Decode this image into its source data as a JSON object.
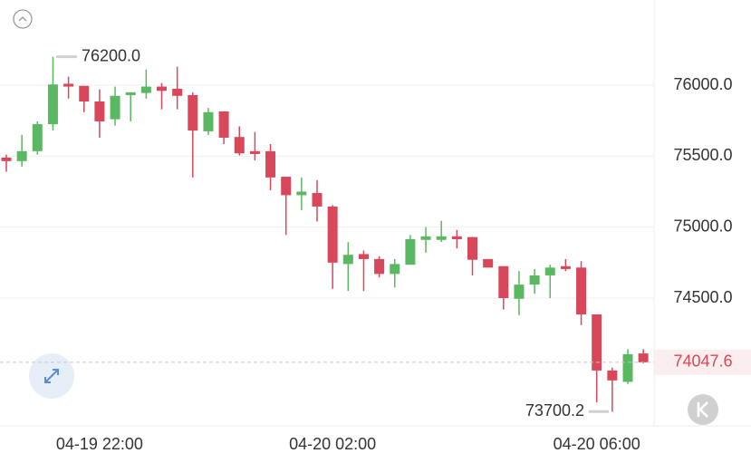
{
  "chart_data": {
    "type": "candlestick",
    "categories": [
      null,
      null,
      null,
      null,
      null,
      null,
      "04-19 22:00",
      null,
      null,
      null,
      null,
      null,
      null,
      null,
      null,
      null,
      null,
      null,
      null,
      null,
      null,
      "04-20 02:00",
      null,
      null,
      null,
      null,
      null,
      null,
      null,
      null,
      null,
      null,
      null,
      null,
      null,
      null,
      null,
      null,
      "04-20 06:00",
      null,
      null,
      null
    ],
    "open": [
      75490,
      75465,
      75535,
      75725,
      76010,
      75995,
      75885,
      75760,
      75930,
      75945,
      75990,
      75975,
      75930,
      75675,
      75815,
      75635,
      75535,
      75535,
      75355,
      75225,
      75240,
      75145,
      74740,
      74810,
      74775,
      74670,
      74735,
      74910,
      74910,
      74935,
      74930,
      74775,
      74725,
      74495,
      74595,
      74660,
      74725,
      74715,
      74385,
      73990,
      73910,
      74110
    ],
    "high": [
      75510,
      75650,
      75745,
      76200,
      76060,
      75995,
      75970,
      75990,
      75950,
      76110,
      76015,
      76130,
      75950,
      75840,
      75815,
      75710,
      75670,
      75585,
      75355,
      75350,
      75330,
      75155,
      74895,
      74835,
      74795,
      74775,
      74945,
      75000,
      75045,
      74980,
      74930,
      74775,
      74725,
      74690,
      74705,
      74735,
      74775,
      74760,
      74385,
      74010,
      74140,
      74140
    ],
    "low": [
      75390,
      75425,
      75510,
      75680,
      75905,
      75810,
      75630,
      75715,
      75745,
      75905,
      75830,
      75830,
      75350,
      75650,
      75585,
      75505,
      75470,
      75260,
      74945,
      75120,
      75040,
      74565,
      74550,
      74550,
      74645,
      74575,
      74735,
      74820,
      74895,
      74850,
      74660,
      74715,
      74420,
      74380,
      74530,
      74500,
      74690,
      74310,
      73765,
      73700.2,
      73895,
      74040
    ],
    "close": [
      75465,
      75535,
      75725,
      76005,
      75990,
      75885,
      75745,
      75925,
      75950,
      75990,
      75960,
      75925,
      75680,
      75810,
      75630,
      75520,
      75515,
      75350,
      75225,
      75250,
      75145,
      74750,
      74805,
      74775,
      74670,
      74740,
      74915,
      74935,
      74935,
      74915,
      74770,
      74715,
      74500,
      74595,
      74660,
      74715,
      74705,
      74385,
      73990,
      73920,
      74105,
      74047.6
    ],
    "up_color": "#5bb862",
    "down_color": "#d9475a",
    "ylim": [
      73600,
      76600
    ],
    "yticks": [
      {
        "value": 74500,
        "label": "74500.0"
      },
      {
        "value": 75000,
        "label": "75000.0"
      },
      {
        "value": 75500,
        "label": "75500.0"
      },
      {
        "value": 76000,
        "label": "76000.0"
      }
    ],
    "grid": true,
    "annotations": [
      {
        "value": 76200,
        "label": "76200.0"
      },
      {
        "value": 73700.2,
        "label": "73700.2"
      }
    ],
    "last_price": {
      "value": 74047.6,
      "label": "74047.6"
    }
  }
}
